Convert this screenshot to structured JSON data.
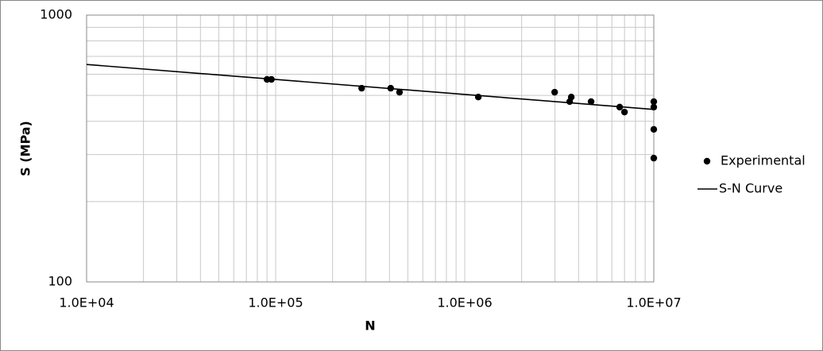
{
  "chart_data": {
    "type": "scatter",
    "x_label": "N",
    "y_label": "S (MPa)",
    "xscale": "log",
    "yscale": "log",
    "grid": true,
    "minor_grid": true,
    "legend": "right",
    "xlim": [
      10000,
      10000000
    ],
    "xticks": [
      {
        "value": 10000,
        "label": "1.0E+04"
      },
      {
        "value": 100000,
        "label": "1.0E+05"
      },
      {
        "value": 1000000,
        "label": "1.0E+06"
      },
      {
        "value": 10000000,
        "label": "1.0E+07"
      }
    ],
    "ylim": [
      100,
      1000
    ],
    "yticks": [
      100,
      1000
    ],
    "series": [
      {
        "name": "Experimental",
        "kind": "points",
        "color": "#000000",
        "x": [
          90000,
          95000,
          285000,
          406000,
          452000,
          1180000,
          2990000,
          3590000,
          3660000,
          4660000,
          6600000,
          7000000,
          10000000,
          10000000,
          10000000,
          10000000
        ],
        "values": [
          574,
          574,
          532,
          532,
          514,
          493,
          514,
          474,
          493,
          474,
          452,
          433,
          474,
          452,
          373,
          291
        ]
      },
      {
        "name": "S-N Curve",
        "kind": "line",
        "color": "#000000",
        "x": [
          10000,
          10000000
        ],
        "values": [
          653,
          443
        ]
      }
    ]
  }
}
